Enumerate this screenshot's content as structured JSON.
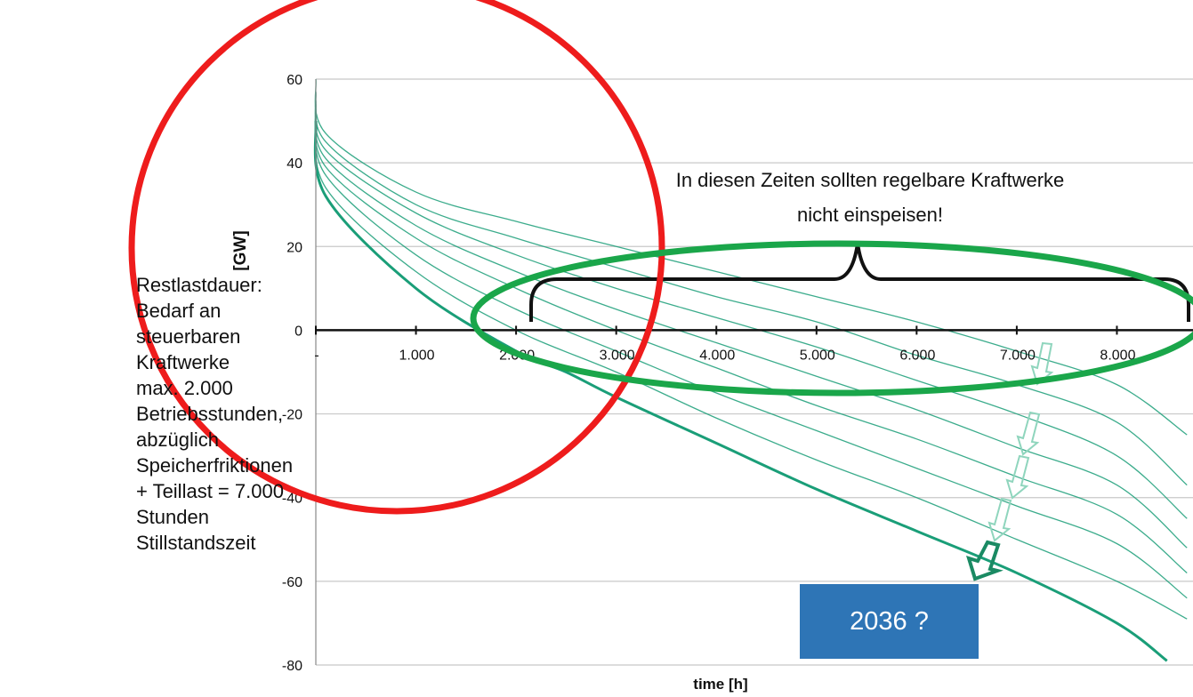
{
  "chart_data": {
    "type": "line",
    "title": "",
    "xlabel": "time [h]",
    "ylabel": "[GW]",
    "xlim": [
      0,
      8760
    ],
    "ylim": [
      -80,
      60
    ],
    "xticks": [
      0,
      1000,
      2000,
      3000,
      4000,
      5000,
      6000,
      7000,
      8000
    ],
    "xtick_labels": [
      "-",
      "1.000",
      "2.000",
      "3.000",
      "4.000",
      "5.000",
      "6.000",
      "7.000",
      "8.000"
    ],
    "yticks": [
      60,
      40,
      20,
      0,
      -20,
      -40,
      -60,
      -80
    ],
    "ytick_labels": [
      "60",
      "40",
      "20",
      "0",
      "-20",
      "-40",
      "-60",
      "-80"
    ],
    "grid": true,
    "legend": "none",
    "colors": {
      "series": "#1a9e78",
      "circle": "#ee1c1c",
      "ellipse": "#1aa64a",
      "brace": "#111111",
      "arrow_light": "#8fd5bd",
      "arrow_dark": "#1a8a63"
    },
    "series": [
      {
        "x": [
          0,
          100,
          1000,
          2000,
          3000,
          4000,
          5000,
          6000,
          7000,
          8000,
          8700
        ],
        "y": [
          60,
          47,
          33,
          26,
          20,
          14,
          8,
          2,
          -5,
          -13,
          -25
        ]
      },
      {
        "x": [
          0,
          100,
          1000,
          2000,
          3000,
          4000,
          5000,
          6000,
          7000,
          8000,
          8700
        ],
        "y": [
          57,
          45,
          30,
          22,
          15,
          8,
          2,
          -6,
          -13,
          -22,
          -37
        ]
      },
      {
        "x": [
          0,
          100,
          1000,
          2000,
          3000,
          4000,
          5000,
          6000,
          7000,
          8000,
          8700
        ],
        "y": [
          55,
          43,
          28,
          18,
          10,
          3,
          -4,
          -12,
          -20,
          -30,
          -45
        ]
      },
      {
        "x": [
          0,
          100,
          1000,
          2000,
          3000,
          4000,
          5000,
          6000,
          7000,
          8000,
          8700
        ],
        "y": [
          54,
          41,
          25,
          14,
          5,
          -3,
          -11,
          -19,
          -28,
          -37,
          -52
        ]
      },
      {
        "x": [
          0,
          100,
          1000,
          2000,
          3000,
          4000,
          5000,
          6000,
          7000,
          8000,
          8700
        ],
        "y": [
          53,
          39,
          22,
          10,
          0,
          -9,
          -18,
          -26,
          -35,
          -44,
          -58
        ]
      },
      {
        "x": [
          0,
          100,
          1000,
          2000,
          3000,
          4000,
          5000,
          6000,
          7000,
          8000,
          8700
        ],
        "y": [
          52,
          37,
          18,
          5,
          -5,
          -15,
          -24,
          -33,
          -42,
          -51,
          -64
        ]
      },
      {
        "x": [
          0,
          100,
          1000,
          2000,
          3000,
          4000,
          5000,
          6000,
          7000,
          8000,
          8700
        ],
        "y": [
          51,
          34,
          14,
          0,
          -10,
          -21,
          -31,
          -40,
          -50,
          -60,
          -69
        ]
      },
      {
        "x": [
          0,
          100,
          1000,
          2000,
          2500,
          3000,
          4000,
          5000,
          6000,
          7000,
          8000,
          8500
        ],
        "y": [
          50,
          32,
          10,
          -5,
          -10,
          -16,
          -27,
          -38,
          -48,
          -58,
          -70,
          -79
        ]
      }
    ],
    "annotations": {
      "brace_text": [
        "In diesen Zeiten sollten regelbare Kraftwerke",
        "nicht einspeisen!"
      ],
      "side_note": [
        "Restlastdauer:",
        "Bedarf an",
        "steuerbaren",
        "Kraftwerke",
        "max. 2.000",
        "Betriebsstunden,",
        "abzüglich",
        "Speicherfriktionen",
        "+ Teillast = 7.000",
        "Stunden",
        "Stillstandszeit"
      ],
      "badge": "2036 ?"
    }
  }
}
